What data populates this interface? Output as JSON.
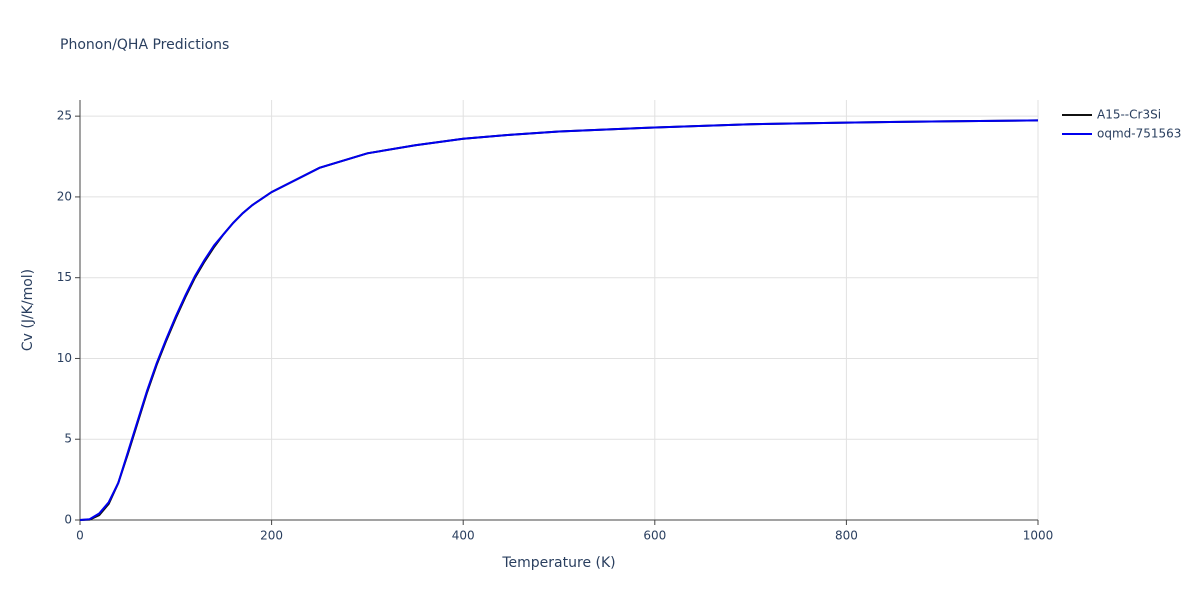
{
  "chart_data": {
    "type": "line",
    "title": "Phonon/QHA Predictions",
    "x_label": "Temperature (K)",
    "y_label": "Cv (J/K/mol)",
    "x": [
      0,
      10,
      20,
      30,
      40,
      50,
      60,
      70,
      80,
      90,
      100,
      110,
      120,
      130,
      140,
      150,
      160,
      170,
      180,
      190,
      200,
      250,
      300,
      350,
      400,
      450,
      500,
      600,
      700,
      800,
      900,
      1000
    ],
    "series": [
      {
        "name": "A15--Cr3Si",
        "color": "#111111",
        "values": [
          0,
          0.02,
          0.3,
          1.0,
          2.3,
          4.1,
          6.0,
          7.9,
          9.6,
          11.1,
          12.5,
          13.8,
          15.0,
          16.0,
          16.9,
          17.7,
          18.4,
          19.0,
          19.5,
          19.9,
          20.3,
          21.8,
          22.7,
          23.2,
          23.6,
          23.85,
          24.05,
          24.3,
          24.5,
          24.6,
          24.68,
          24.74
        ]
      },
      {
        "name": "oqmd-751563",
        "color": "#0000ee",
        "values": [
          0,
          0.05,
          0.4,
          1.1,
          2.3,
          4.2,
          6.1,
          8.0,
          9.7,
          11.2,
          12.6,
          13.9,
          15.1,
          16.1,
          17.0,
          17.7,
          18.4,
          19.0,
          19.5,
          19.9,
          20.3,
          21.8,
          22.7,
          23.2,
          23.6,
          23.85,
          24.05,
          24.3,
          24.5,
          24.6,
          24.68,
          24.74
        ]
      }
    ],
    "xlim": [
      0,
      1000
    ],
    "xticks": [
      0,
      200,
      400,
      600,
      800,
      1000
    ],
    "ylim": [
      0,
      26
    ],
    "yticks": [
      0,
      5,
      10,
      15,
      20,
      25
    ],
    "grid": true
  }
}
